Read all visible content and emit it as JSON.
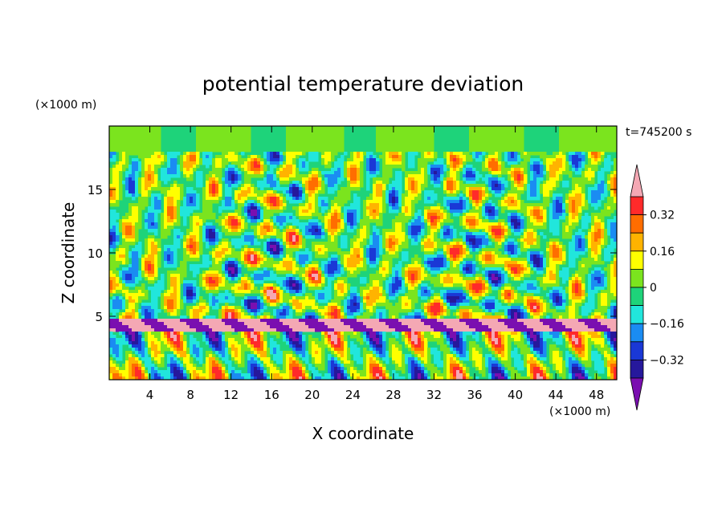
{
  "chart_data": {
    "type": "heatmap",
    "title": "potential temperature deviation",
    "xlabel": "X coordinate",
    "ylabel": "Z coordinate",
    "x_unit_label": "(×1000 m)",
    "y_unit_label": "(×1000 m)",
    "time_label": "t=745200 s",
    "xlim": [
      0,
      50
    ],
    "ylim": [
      0,
      20
    ],
    "x_ticks": [
      4,
      8,
      12,
      16,
      20,
      24,
      28,
      32,
      36,
      40,
      44,
      48
    ],
    "x_tick_labels": [
      "4",
      "8",
      "12",
      "16",
      "20",
      "24",
      "28",
      "32",
      "36",
      "40",
      "44",
      "48"
    ],
    "y_ticks": [
      5,
      10,
      15
    ],
    "y_tick_labels": [
      "5",
      "10",
      "15"
    ],
    "colorbar": {
      "tick_values": [
        0.32,
        0.16,
        0,
        -0.16,
        -0.32
      ],
      "tick_labels": [
        "0.32",
        "0.16",
        "0",
        "−0.16",
        "−0.32"
      ],
      "levels": [
        -0.4,
        -0.32,
        -0.24,
        -0.16,
        -0.08,
        0,
        0.08,
        0.16,
        0.24,
        0.32,
        0.4
      ],
      "colors": [
        "#7a0fb0",
        "#26189c",
        "#1a38d6",
        "#1a8cf2",
        "#21e6dc",
        "#1ed37a",
        "#7be41e",
        "#ffff00",
        "#ffb300",
        "#ff6d00",
        "#ff2a2a",
        "#f4a8b4"
      ],
      "extend": "both"
    }
  }
}
